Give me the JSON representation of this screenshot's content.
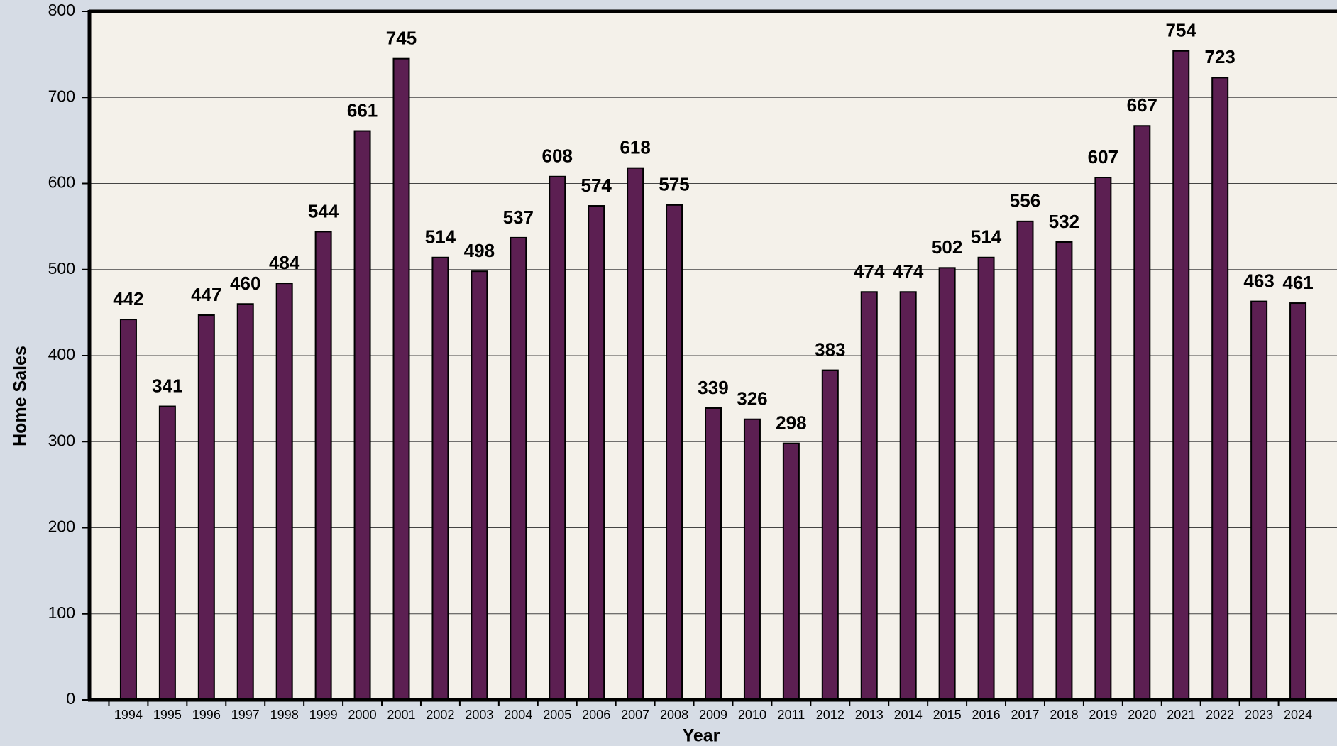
{
  "chart_data": {
    "type": "bar",
    "xlabel": "Year",
    "ylabel": "Home Sales",
    "categories": [
      "1994",
      "1995",
      "1996",
      "1997",
      "1998",
      "1999",
      "2000",
      "2001",
      "2002",
      "2003",
      "2004",
      "2005",
      "2006",
      "2007",
      "2008",
      "2009",
      "2010",
      "2011",
      "2012",
      "2013",
      "2014",
      "2015",
      "2016",
      "2017",
      "2018",
      "2019",
      "2020",
      "2021",
      "2022",
      "2023",
      "2024"
    ],
    "values": [
      442,
      341,
      447,
      460,
      484,
      544,
      661,
      745,
      514,
      498,
      537,
      608,
      574,
      618,
      575,
      339,
      326,
      298,
      383,
      474,
      474,
      502,
      514,
      556,
      532,
      607,
      667,
      754,
      723,
      463,
      461
    ],
    "color": "#5c1f52",
    "ylim": [
      0,
      800
    ],
    "yticks": [
      0,
      100,
      200,
      300,
      400,
      500,
      600,
      700,
      800
    ],
    "grid": true
  }
}
